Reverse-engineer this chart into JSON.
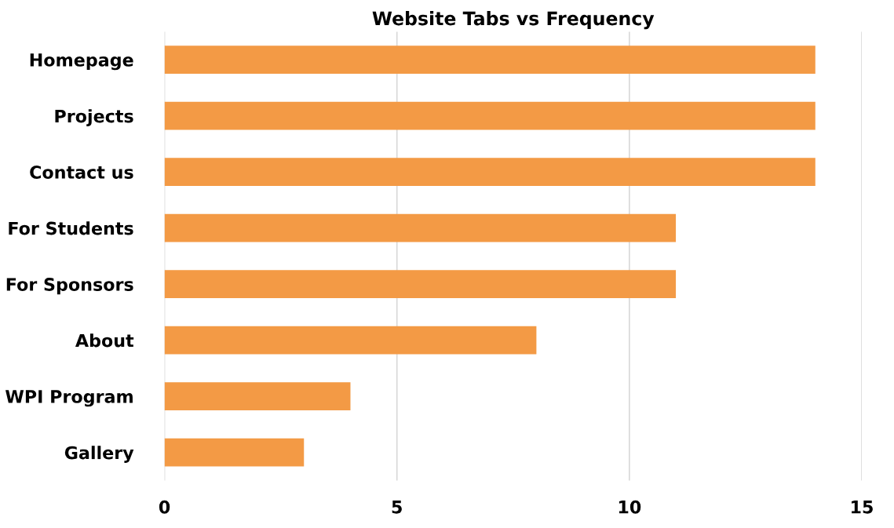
{
  "chart_data": {
    "type": "bar",
    "orientation": "horizontal",
    "title": "Website Tabs vs Frequency",
    "categories": [
      "Homepage",
      "Projects",
      "Contact us",
      "For Students",
      "For Sponsors",
      "About",
      "WPI Program",
      "Gallery"
    ],
    "values": [
      14,
      14,
      14,
      11,
      11,
      8,
      4,
      3
    ],
    "color": "#f39a45",
    "xlim": [
      0,
      15
    ],
    "xticks": [
      0,
      5,
      10,
      15
    ],
    "grid": "x"
  }
}
